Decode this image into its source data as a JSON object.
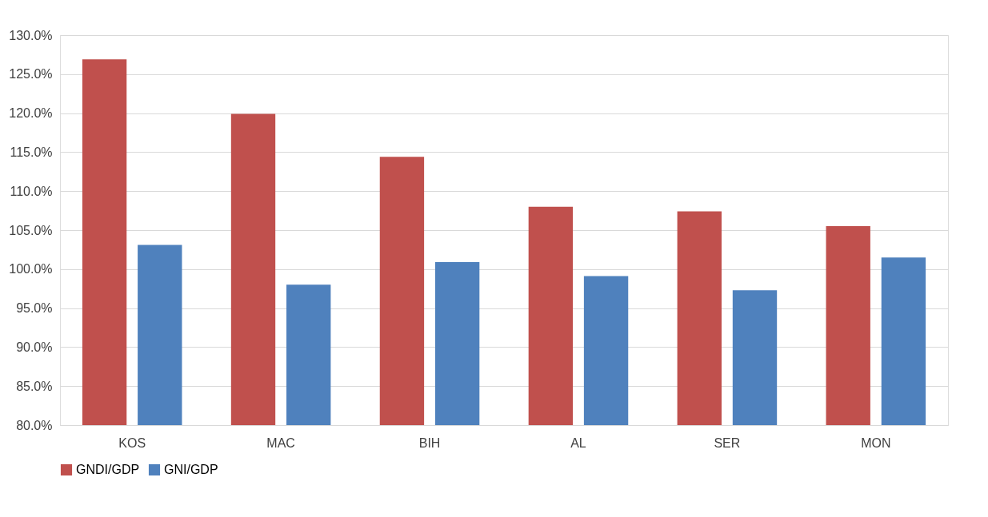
{
  "chart_data": {
    "type": "bar",
    "categories": [
      "KOS",
      "MAC",
      "BIH",
      "AL",
      "SER",
      "MON"
    ],
    "series": [
      {
        "name": "GNDI/GDP",
        "color": "#c0504d",
        "values": [
          126.9,
          119.9,
          114.4,
          108.0,
          107.4,
          105.5
        ]
      },
      {
        "name": "GNI/GDP",
        "color": "#4f81bd",
        "values": [
          103.1,
          98.0,
          100.9,
          99.1,
          97.3,
          101.5
        ]
      }
    ],
    "ylim": [
      80,
      130
    ],
    "yticks": [
      {
        "value": 80,
        "label": "80.0%"
      },
      {
        "value": 85,
        "label": "85.0%"
      },
      {
        "value": 90,
        "label": "90.0%"
      },
      {
        "value": 95,
        "label": "95.0%"
      },
      {
        "value": 100,
        "label": "100.0%"
      },
      {
        "value": 105,
        "label": "105.0%"
      },
      {
        "value": 110,
        "label": "110.0%"
      },
      {
        "value": 115,
        "label": "115.0%"
      },
      {
        "value": 120,
        "label": "120.0%"
      },
      {
        "value": 125,
        "label": "125.0%"
      },
      {
        "value": 130,
        "label": "130.0%"
      }
    ],
    "grid": "y",
    "legend": "bottom"
  }
}
